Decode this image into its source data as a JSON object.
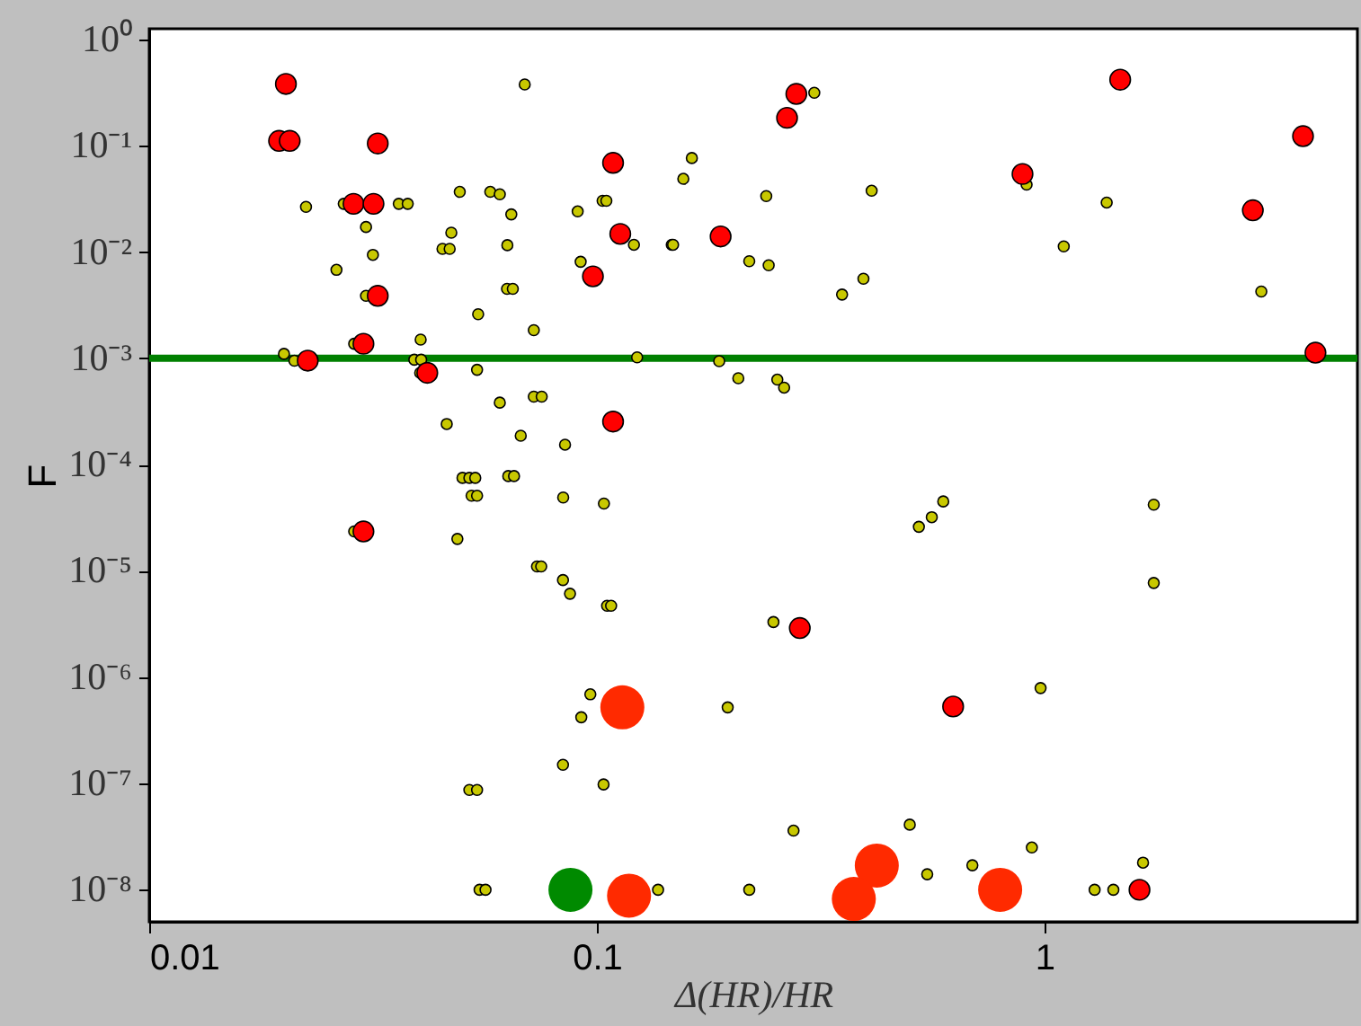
{
  "chart_data": {
    "type": "scatter",
    "xlabel": "Δ(HR)/HR",
    "ylabel": "F",
    "log": "xy",
    "grid": false,
    "marker": "circle",
    "xlim": [
      0.01,
      5
    ],
    "xticks": [
      0.01,
      0.1,
      1
    ],
    "ylim": [
      5e-09,
      1.26
    ],
    "yticks": [
      {
        "value": 1e-08,
        "label": "10⁻⁸"
      },
      {
        "value": 1e-07,
        "label": "10⁻⁷"
      },
      {
        "value": 1e-06,
        "label": "10⁻⁶"
      },
      {
        "value": 1e-05,
        "label": "10⁻⁵"
      },
      {
        "value": 0.0001,
        "label": "10⁻⁴"
      },
      {
        "value": 0.001,
        "label": "10⁻³"
      },
      {
        "value": 0.01,
        "label": "10⁻²"
      },
      {
        "value": 0.1,
        "label": "10⁻¹"
      },
      {
        "value": 1,
        "label": "10⁰"
      }
    ],
    "ref_lines": [
      {
        "axis": "y",
        "value": 0.001,
        "color": "#008000"
      }
    ],
    "series": [
      {
        "color": "#c8c800",
        "x": [
          0.069,
          0.0224,
          0.0272,
          0.0305,
          0.0316,
          0.0262,
          0.0305,
          0.0361,
          0.0378,
          0.0494,
          0.0473,
          0.0452,
          0.0469,
          0.0578,
          0.0607,
          0.0644,
          0.0631,
          0.063,
          0.0649,
          0.0543,
          0.0723,
          0.0287,
          0.02,
          0.0211,
          0.0404,
          0.0391,
          0.0405,
          0.0403,
          0.054,
          0.0462,
          0.0607,
          0.0723,
          0.0753,
          0.0676,
          0.0849,
          0.0501,
          0.0519,
          0.0535,
          0.0525,
          0.054,
          0.0634,
          0.0653,
          0.0841,
          0.1037,
          0.0906,
          0.092,
          0.103,
          0.105,
          0.121,
          0.147,
          0.123,
          0.156,
          0.148,
          0.163,
          0.239,
          0.306,
          0.411,
          0.219,
          0.242,
          0.353,
          0.394,
          0.912,
          1.377,
          1.104,
          3.05,
          0.1876,
          0.207,
          0.253,
          0.262,
          0.594,
          0.524,
          0.56,
          1.754,
          1.754,
          0.248,
          0.196,
          0.98,
          0.275,
          0.5,
          0.937,
          0.547,
          0.69,
          1.66,
          0.219,
          1.294,
          1.425,
          0.0287,
          0.0488,
          0.0735,
          0.0751,
          0.084,
          0.0871,
          0.1054,
          0.1076,
          0.0967,
          0.0923,
          0.084,
          0.1035,
          0.0519,
          0.054,
          0.0547,
          0.0564,
          0.137
        ],
        "values": [
          0.377,
          0.0266,
          0.0284,
          0.0172,
          0.0094,
          0.0068,
          0.00387,
          0.0284,
          0.0284,
          0.0368,
          0.0152,
          0.0107,
          0.0107,
          0.0368,
          0.0349,
          0.0226,
          0.0116,
          0.0045,
          0.0045,
          0.0026,
          0.00184,
          0.00137,
          0.0011,
          0.00095,
          0.0015,
          0.00097,
          0.00097,
          0.00073,
          0.00078,
          0.000241,
          0.000383,
          0.000436,
          0.000436,
          0.000187,
          0.000154,
          7.5e-05,
          7.5e-05,
          7.5e-05,
          5.1e-05,
          5.1e-05,
          7.8e-05,
          7.8e-05,
          4.9e-05,
          4.3e-05,
          0.0241,
          0.0081,
          0.0303,
          0.0303,
          0.0117,
          0.0117,
          0.00102,
          0.0488,
          0.0117,
          0.0766,
          0.0336,
          0.315,
          0.0377,
          0.0082,
          0.0075,
          0.00398,
          0.0056,
          0.043,
          0.0292,
          0.0113,
          0.00425,
          0.00094,
          0.00065,
          0.00063,
          0.00053,
          4.5e-05,
          2.6e-05,
          3.2e-05,
          4.2e-05,
          7.7e-06,
          3.3e-06,
          5.2e-07,
          7.9e-07,
          3.6e-08,
          4.1e-08,
          2.5e-08,
          1.4e-08,
          1.7e-08,
          1.8e-08,
          1e-08,
          1e-08,
          1e-08,
          2.35e-05,
          2e-05,
          1.1e-05,
          1.1e-05,
          8.2e-06,
          6.1e-06,
          4.7e-06,
          4.7e-06,
          6.9e-07,
          4.2e-07,
          1.5e-07,
          9.8e-08,
          8.7e-08,
          8.7e-08,
          1e-08,
          1e-08,
          1e-08
        ]
      },
      {
        "color": "#ff0000",
        "x": [
          0.0202,
          0.0195,
          0.0206,
          0.0324,
          0.0286,
          0.0317,
          0.0324,
          0.0301,
          0.0226,
          0.0418,
          0.1087,
          0.1128,
          0.098,
          0.1087,
          0.279,
          0.266,
          0.189,
          1.476,
          0.893,
          3.78,
          2.92,
          4.03,
          0.0301,
          0.284,
          0.625,
          1.63
        ],
        "values": [
          0.381,
          0.111,
          0.111,
          0.105,
          0.0284,
          0.0284,
          0.00387,
          0.00137,
          0.00095,
          0.00073,
          0.069,
          0.0148,
          0.0059,
          0.000254,
          0.307,
          0.183,
          0.014,
          0.418,
          0.0542,
          0.123,
          0.0247,
          0.00113,
          2.35e-05,
          2.9e-06,
          5.3e-07,
          1e-08
        ]
      },
      {
        "color": "#ff2a00",
        "x": [
          0.114,
          0.118,
          0.422,
          0.375,
          0.796
        ],
        "values": [
          5.2e-07,
          8.8e-09,
          1.69e-08,
          8.2e-09,
          1e-08
        ]
      },
      {
        "color": "#008a00",
        "x": [
          0.0873
        ],
        "values": [
          1e-08
        ]
      }
    ]
  }
}
